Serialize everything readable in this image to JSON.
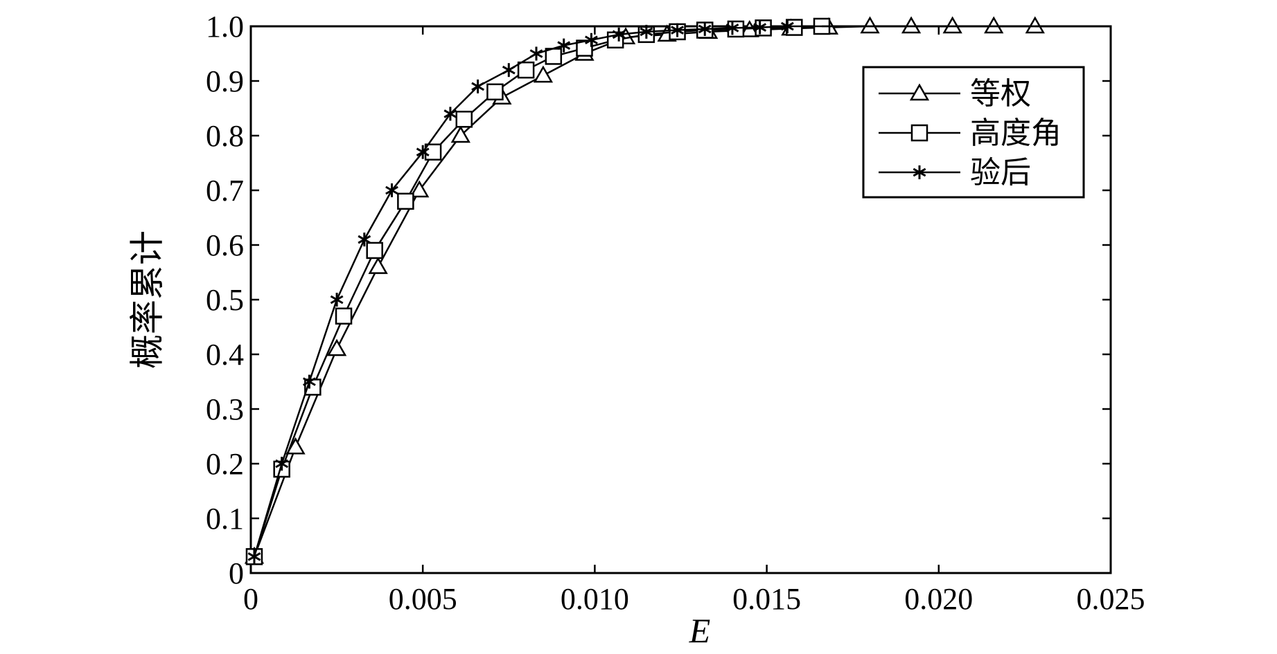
{
  "chart_data": {
    "type": "line",
    "title": "",
    "xlabel": "E",
    "ylabel": "概率累计",
    "xlim": [
      0,
      0.025
    ],
    "ylim": [
      0,
      1.0
    ],
    "x_ticks": [
      0,
      0.005,
      0.01,
      0.015,
      0.02,
      0.025
    ],
    "x_tick_labels": [
      "0",
      "0.005",
      "0.010",
      "0.015",
      "0.020",
      "0.025"
    ],
    "y_ticks": [
      0,
      0.1,
      0.2,
      0.3,
      0.4,
      0.5,
      0.6,
      0.7,
      0.8,
      0.9,
      1.0
    ],
    "y_tick_labels": [
      "0",
      "0.1",
      "0.2",
      "0.3",
      "0.4",
      "0.5",
      "0.6",
      "0.7",
      "0.8",
      "0.9",
      "1.0"
    ],
    "grid": false,
    "legend_position": "top-right",
    "series": [
      {
        "name": "等权",
        "marker": "triangle",
        "color": "#000000",
        "x": [
          0.0001,
          0.0013,
          0.0025,
          0.0037,
          0.0049,
          0.0061,
          0.0073,
          0.0085,
          0.0097,
          0.0109,
          0.0121,
          0.0133,
          0.0145,
          0.0157,
          0.0168,
          0.018,
          0.0192,
          0.0204,
          0.0216,
          0.0228
        ],
        "y": [
          0.03,
          0.23,
          0.41,
          0.56,
          0.7,
          0.8,
          0.87,
          0.91,
          0.95,
          0.98,
          0.985,
          0.99,
          0.993,
          0.996,
          0.998,
          1.0,
          1.0,
          1.0,
          1.0,
          1.0
        ]
      },
      {
        "name": "高度角",
        "marker": "square",
        "color": "#000000",
        "x": [
          0.0001,
          0.0009,
          0.0018,
          0.0027,
          0.0036,
          0.0045,
          0.0053,
          0.0062,
          0.0071,
          0.008,
          0.0088,
          0.0097,
          0.0106,
          0.0115,
          0.0124,
          0.0132,
          0.0141,
          0.0149,
          0.0158,
          0.0166
        ],
        "y": [
          0.03,
          0.19,
          0.34,
          0.47,
          0.59,
          0.68,
          0.77,
          0.83,
          0.88,
          0.92,
          0.945,
          0.96,
          0.975,
          0.985,
          0.99,
          0.993,
          0.995,
          0.997,
          0.998,
          1.0
        ]
      },
      {
        "name": "验后",
        "marker": "asterisk",
        "color": "#000000",
        "x": [
          0.0001,
          0.0009,
          0.0017,
          0.0025,
          0.0033,
          0.0041,
          0.005,
          0.0058,
          0.0066,
          0.0075,
          0.0083,
          0.0091,
          0.0099,
          0.0107,
          0.0115,
          0.0124,
          0.0132,
          0.014,
          0.0148,
          0.0156
        ],
        "y": [
          0.03,
          0.2,
          0.35,
          0.5,
          0.61,
          0.7,
          0.77,
          0.84,
          0.89,
          0.92,
          0.95,
          0.965,
          0.975,
          0.985,
          0.99,
          0.993,
          0.995,
          0.997,
          0.998,
          1.0
        ]
      }
    ]
  }
}
